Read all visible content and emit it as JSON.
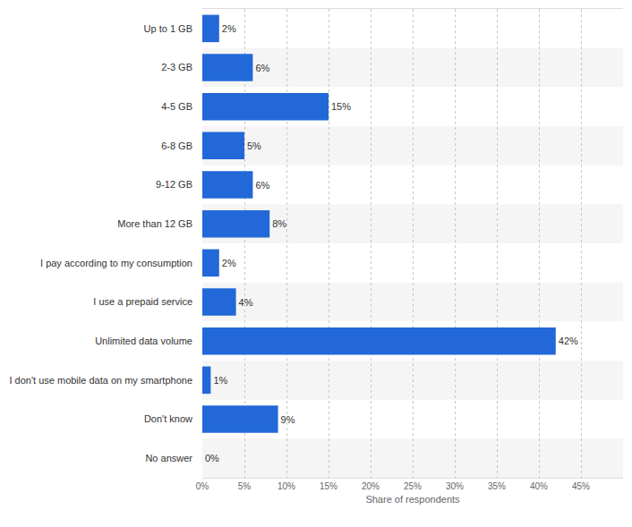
{
  "chart_data": {
    "type": "bar",
    "orientation": "horizontal",
    "categories": [
      "Up to 1 GB",
      "2-3 GB",
      "4-5 GB",
      "6-8 GB",
      "9-12 GB",
      "More than 12 GB",
      "I pay according to my consumption",
      "I use a prepaid service",
      "Unlimited data volume",
      "I don't use mobile data on my smartphone",
      "Don't know",
      "No answer"
    ],
    "values": [
      2,
      6,
      15,
      5,
      6,
      8,
      2,
      4,
      42,
      1,
      9,
      0
    ],
    "value_labels": [
      "2%",
      "6%",
      "15%",
      "5%",
      "6%",
      "8%",
      "2%",
      "4%",
      "42%",
      "1%",
      "9%",
      "0%"
    ],
    "color": "#2268d8",
    "x_label": "Share of respondents",
    "xlim": [
      0,
      50
    ],
    "xticks": [
      {
        "value": 0,
        "label": "0%"
      },
      {
        "value": 5,
        "label": "5%"
      },
      {
        "value": 10,
        "label": "10%"
      },
      {
        "value": 15,
        "label": "15%"
      },
      {
        "value": 20,
        "label": "20%"
      },
      {
        "value": 25,
        "label": "25%"
      },
      {
        "value": 30,
        "label": "30%"
      },
      {
        "value": 35,
        "label": "35%"
      },
      {
        "value": 40,
        "label": "40%"
      },
      {
        "value": 45,
        "label": "45%"
      }
    ],
    "grid": true,
    "data_labels": true
  }
}
